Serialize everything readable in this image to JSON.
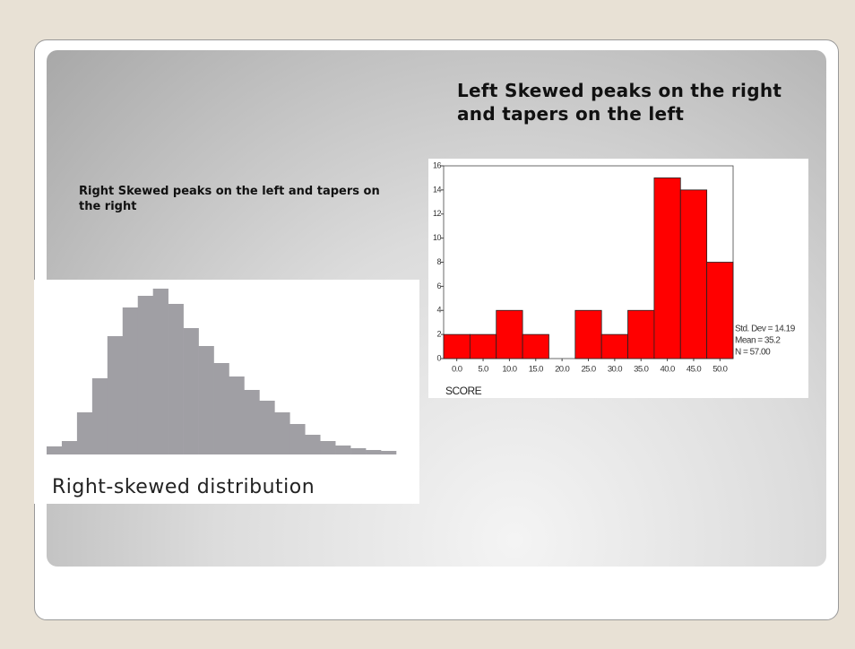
{
  "slide": {
    "right_skew_note": "Right Skewed peaks on the left and tapers on the right",
    "left_skew_note": "Left Skewed peaks on the right and tapers on the left"
  },
  "chart_data": [
    {
      "type": "bar",
      "title": "Right-skewed distribution",
      "color": "#a09fa4",
      "categories": [
        null,
        null,
        null,
        null,
        null,
        null,
        null,
        null,
        null,
        null,
        null,
        null,
        null,
        null,
        null,
        null,
        null,
        null,
        null,
        null,
        null,
        null,
        null
      ],
      "values": [
        9,
        15,
        47,
        85,
        132,
        164,
        177,
        185,
        168,
        141,
        121,
        102,
        87,
        72,
        60,
        47,
        34,
        22,
        15,
        10,
        7,
        5,
        4
      ],
      "ylim": [
        0,
        200
      ]
    },
    {
      "type": "histogram",
      "color": "#ff0000",
      "xlabel": "SCORE",
      "bins": [
        -2.5,
        2.5,
        7.5,
        12.5,
        17.5,
        22.5,
        27.5,
        32.5,
        37.5,
        42.5,
        47.5,
        52.5
      ],
      "values": [
        2,
        2,
        4,
        2,
        0,
        4,
        2,
        4,
        15,
        14,
        8
      ],
      "xlim": [
        -2.5,
        52.5
      ],
      "xticks": [
        {
          "value": 0,
          "label": "0.0"
        },
        {
          "value": 5,
          "label": "5.0"
        },
        {
          "value": 10,
          "label": "10.0"
        },
        {
          "value": 15,
          "label": "15.0"
        },
        {
          "value": 20,
          "label": "20.0"
        },
        {
          "value": 25,
          "label": "25.0"
        },
        {
          "value": 30,
          "label": "30.0"
        },
        {
          "value": 35,
          "label": "35.0"
        },
        {
          "value": 40,
          "label": "40.0"
        },
        {
          "value": 45,
          "label": "45.0"
        },
        {
          "value": 50,
          "label": "50.0"
        }
      ],
      "ylim": [
        0,
        16
      ],
      "yticks": [
        0,
        2,
        4,
        6,
        8,
        10,
        12,
        14,
        16
      ],
      "annotations": [
        "Std. Dev = 14.19",
        "Mean = 35.2",
        "N = 57.00"
      ]
    }
  ]
}
